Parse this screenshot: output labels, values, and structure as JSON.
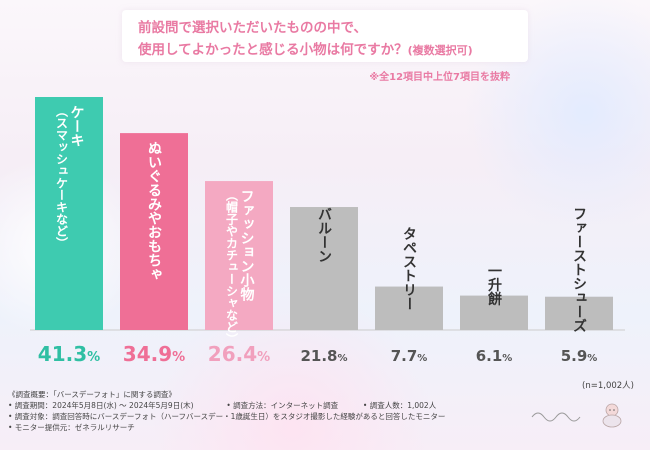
{
  "header": {
    "question_line1": "前設問で選択いただいたものの中で、",
    "question_line2": "使用してよかったと感じる小物は何ですか？",
    "question_line2_suffix": "(複数選択可)",
    "note": "※全12項目中上位7項目を抜粋"
  },
  "chart_data": {
    "type": "bar",
    "categories": [
      "ケーキ（スマッシュケーキなど）",
      "ぬいぐるみやおもちゃ",
      "ファッション小物（帽子やカチューシャなど）",
      "バルーン",
      "タペストリー",
      "一升餅",
      "ファーストシューズ"
    ],
    "category_lines": [
      [
        "ケーキ",
        "（スマッシュケーキなど）"
      ],
      [
        "ぬいぐるみやおもちゃ"
      ],
      [
        "ファッション小物",
        "（帽子やカチューシャなど）"
      ],
      [
        "バルーン"
      ],
      [
        "タペストリー"
      ],
      [
        "一升餅"
      ],
      [
        "ファーストシューズ"
      ]
    ],
    "values": [
      41.3,
      34.9,
      26.4,
      21.8,
      7.7,
      6.1,
      5.9
    ],
    "value_labels": [
      "41.3",
      "34.9",
      "26.4",
      "21.8",
      "7.7",
      "6.1",
      "5.9"
    ],
    "unit": "%",
    "ylim": [
      0,
      45
    ],
    "colors": [
      "#3ecbb0",
      "#ef6f96",
      "#f4a9c2",
      "#bdbdbd",
      "#bdbdbd",
      "#bdbdbd",
      "#bdbdbd"
    ],
    "label_colors": [
      "#ffffff",
      "#ffffff",
      "#ffffff",
      "#333333",
      "#333333",
      "#333333",
      "#333333"
    ],
    "value_colors": [
      "#2fbfa3",
      "#ef6f96",
      "#f1a0bd",
      "#555555",
      "#555555",
      "#555555",
      "#555555"
    ],
    "sample_size": "(n=1,002人)"
  },
  "footer": {
    "row1": "《調査概要：「バースデーフォト」に関する調査》",
    "period": "• 調査期間：2024年5月8日(水) ～ 2024年5月9日(木)",
    "method": "• 調査方法：インターネット調査",
    "count": "• 調査人数：1,002人",
    "target": "• 調査対象：調査回答時にバースデーフォト（ハーフバースデー・1歳誕生日）をスタジオ撮影した経験があると回答したモニター",
    "provider": "• モニター提供元：ゼネラルリサーチ"
  }
}
